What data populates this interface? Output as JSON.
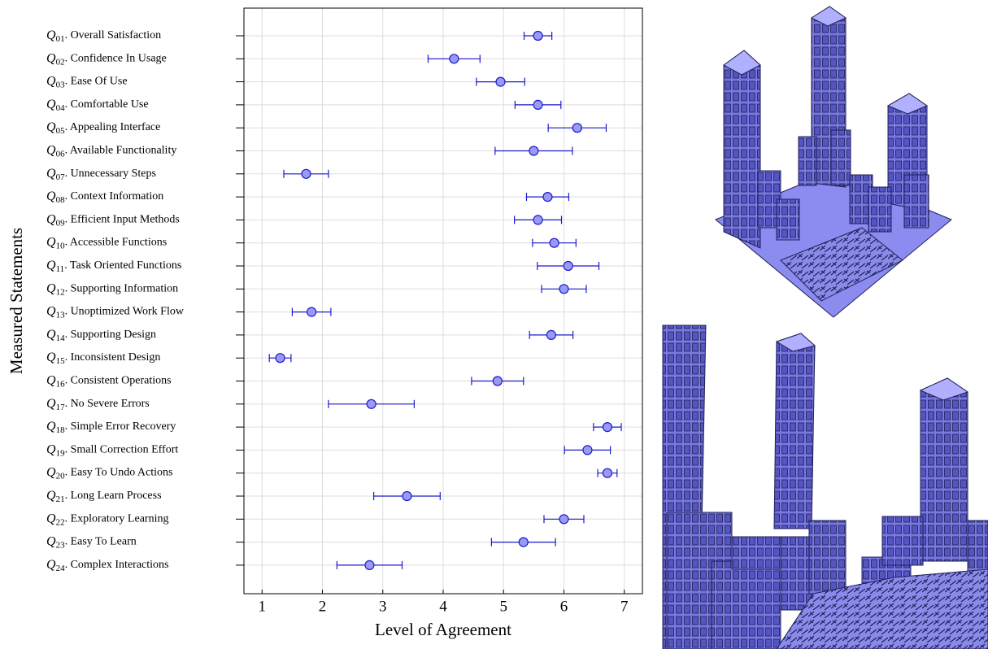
{
  "chart_data": {
    "type": "errorbar",
    "xlabel": "Level of Agreement",
    "ylabel": "Measured Statements",
    "categories": [
      "Q01. Overall Satisfaction",
      "Q02. Confidence In Usage",
      "Q03. Ease Of Use",
      "Q04. Comfortable Use",
      "Q05. Appealing Interface",
      "Q06. Available Functionality",
      "Q07. Unnecessary Steps",
      "Q08. Context Information",
      "Q09. Efficient Input Methods",
      "Q10. Accessible Functions",
      "Q11. Task Oriented Functions",
      "Q12. Supporting Information",
      "Q13. Unoptimized Work Flow",
      "Q14. Supporting Design",
      "Q15. Inconsistent Design",
      "Q16. Consistent Operations",
      "Q17. No Severe Errors",
      "Q18. Simple Error Recovery",
      "Q19. Small Correction Effort",
      "Q20. Easy To Undo Actions",
      "Q21. Long Learn Process",
      "Q22. Exploratory Learning",
      "Q23. Easy To Learn",
      "Q24. Complex Interactions"
    ],
    "values": [
      5.57,
      4.18,
      4.95,
      5.57,
      6.22,
      5.5,
      1.73,
      5.73,
      5.57,
      5.84,
      6.07,
      6.0,
      1.82,
      5.79,
      1.3,
      4.9,
      2.81,
      6.72,
      6.39,
      6.72,
      3.4,
      6.0,
      5.33,
      2.78
    ],
    "errors": [
      0.23,
      0.43,
      0.4,
      0.38,
      0.48,
      0.64,
      0.37,
      0.35,
      0.39,
      0.36,
      0.51,
      0.37,
      0.32,
      0.36,
      0.18,
      0.43,
      0.71,
      0.23,
      0.38,
      0.16,
      0.55,
      0.33,
      0.53,
      0.54
    ],
    "color": "#9a9af5",
    "edge_color": "#1a1acc",
    "xlim": [
      0.7,
      7.3
    ],
    "xticks": [
      1,
      2,
      3,
      4,
      5,
      6,
      7
    ],
    "grid": true
  }
}
